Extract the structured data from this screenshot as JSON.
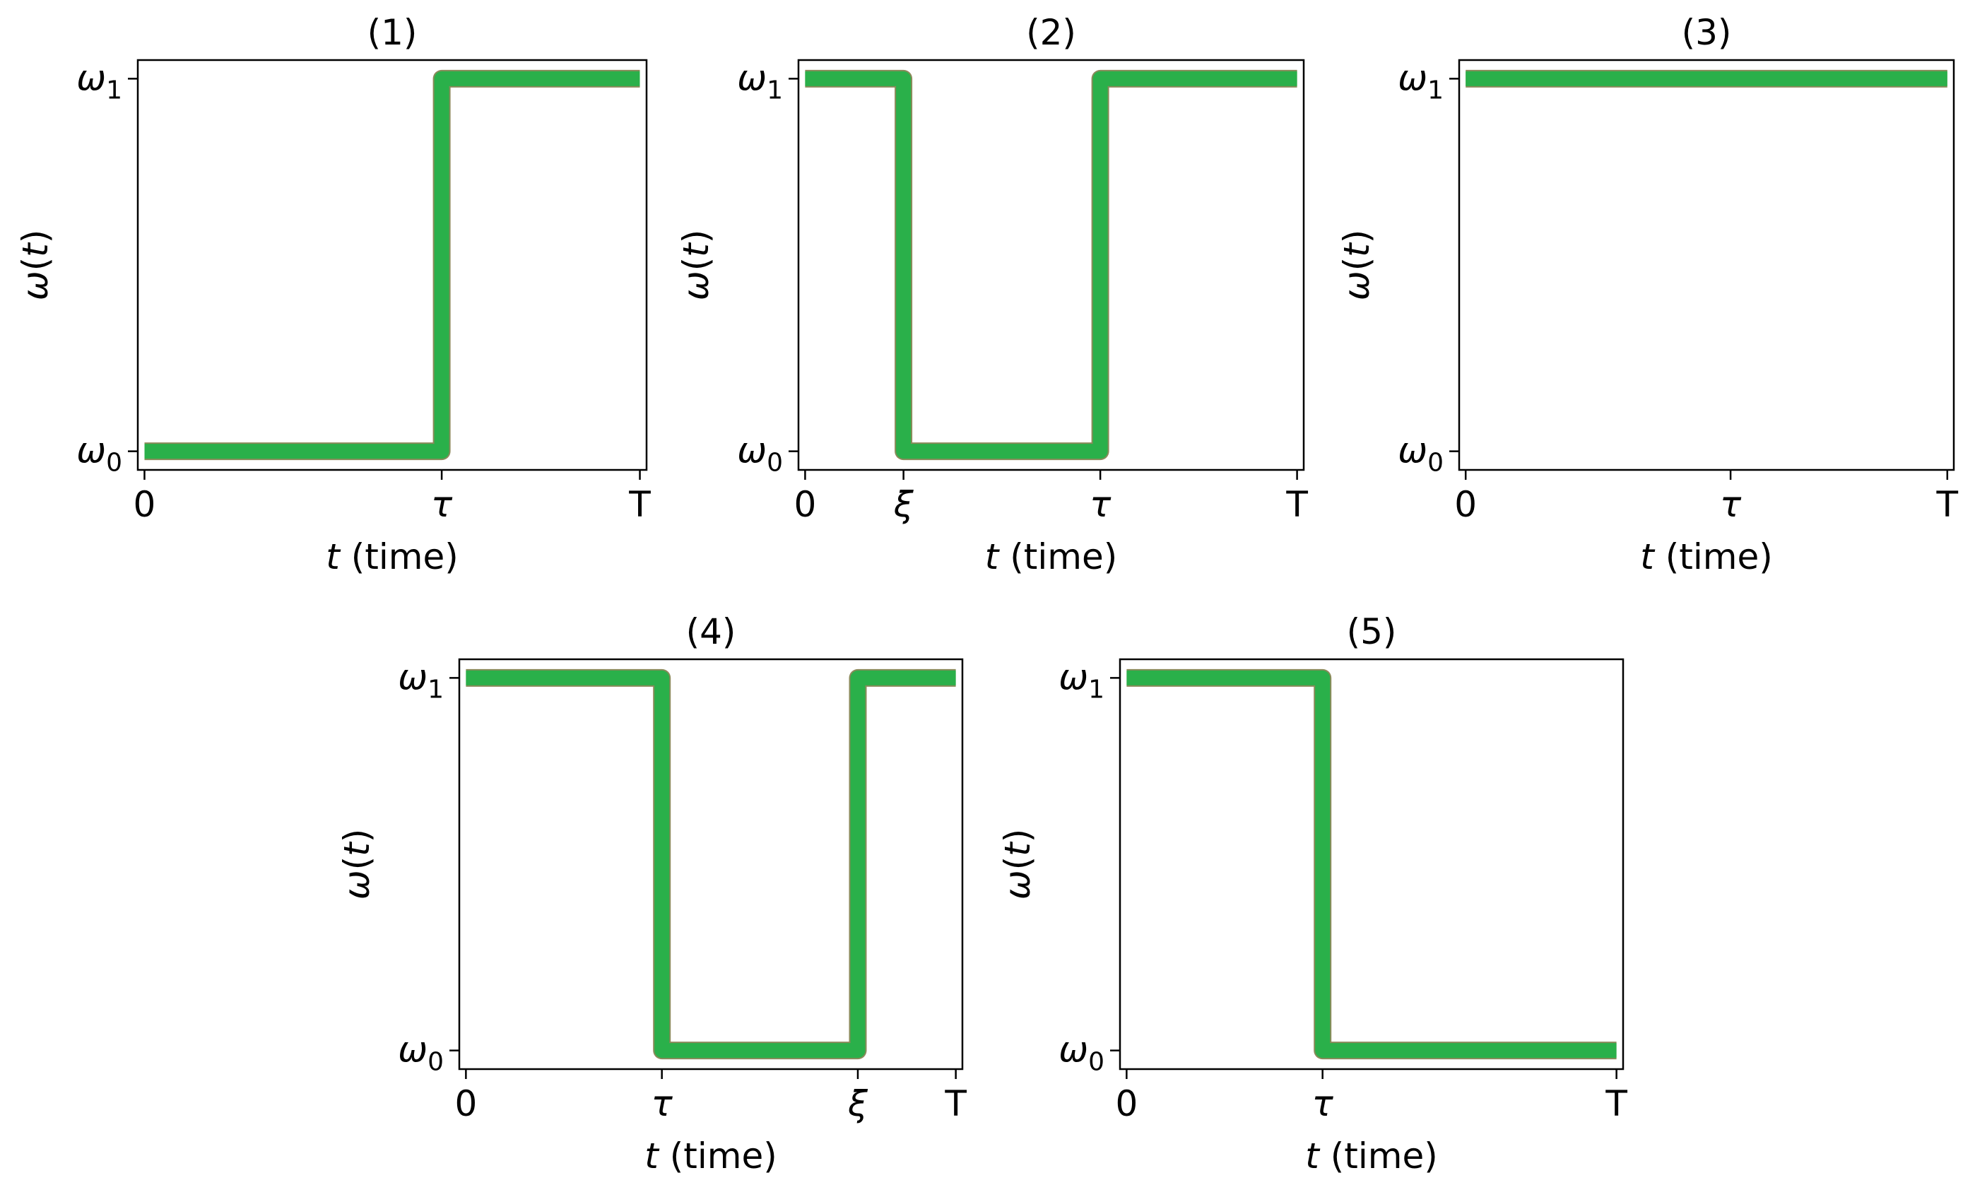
{
  "chart_data": [
    {
      "type": "line",
      "title": "(1)",
      "xlabel": {
        "var": "t",
        "rest": " (time)"
      },
      "ylabel": {
        "sym": "ω",
        "open": "(",
        "var": "t",
        "close": ")"
      },
      "xticks": [
        {
          "value": 0,
          "label": "0",
          "italic": false
        },
        {
          "value": 0.6,
          "label": "τ",
          "italic": true
        },
        {
          "value": 1,
          "label": "T",
          "italic": false
        }
      ],
      "yticks": [
        {
          "value": 0,
          "base": "ω",
          "sub": "0"
        },
        {
          "value": 1,
          "base": "ω",
          "sub": "1"
        }
      ],
      "xlim": [
        -0.0135,
        1.0135
      ],
      "ylim": [
        -0.05,
        1.05
      ],
      "series": [
        {
          "color": "#2ab04a",
          "x": [
            0,
            0.6,
            0.6,
            1
          ],
          "y": [
            0,
            0,
            1,
            1
          ]
        }
      ]
    },
    {
      "type": "line",
      "title": "(2)",
      "xlabel": {
        "var": "t",
        "rest": " (time)"
      },
      "ylabel": {
        "sym": "ω",
        "open": "(",
        "var": "t",
        "close": ")"
      },
      "xticks": [
        {
          "value": 0,
          "label": "0",
          "italic": false
        },
        {
          "value": 0.2,
          "label": "ξ",
          "italic": true
        },
        {
          "value": 0.6,
          "label": "τ",
          "italic": true
        },
        {
          "value": 1,
          "label": "T",
          "italic": false
        }
      ],
      "yticks": [
        {
          "value": 0,
          "base": "ω",
          "sub": "0"
        },
        {
          "value": 1,
          "base": "ω",
          "sub": "1"
        }
      ],
      "xlim": [
        -0.0135,
        1.0135
      ],
      "ylim": [
        -0.05,
        1.05
      ],
      "series": [
        {
          "color": "#2ab04a",
          "x": [
            0,
            0.2,
            0.2,
            0.6,
            0.6,
            1
          ],
          "y": [
            1,
            1,
            0,
            0,
            1,
            1
          ]
        }
      ]
    },
    {
      "type": "line",
      "title": "(3)",
      "xlabel": {
        "var": "t",
        "rest": " (time)"
      },
      "ylabel": {
        "sym": "ω",
        "open": "(",
        "var": "t",
        "close": ")"
      },
      "xticks": [
        {
          "value": 0,
          "label": "0",
          "italic": false
        },
        {
          "value": 0.55,
          "label": "τ",
          "italic": true
        },
        {
          "value": 1,
          "label": "T",
          "italic": false
        }
      ],
      "yticks": [
        {
          "value": 0,
          "base": "ω",
          "sub": "0"
        },
        {
          "value": 1,
          "base": "ω",
          "sub": "1"
        }
      ],
      "xlim": [
        -0.0135,
        1.0135
      ],
      "ylim": [
        -0.05,
        1.05
      ],
      "series": [
        {
          "color": "#2ab04a",
          "x": [
            0,
            1
          ],
          "y": [
            1,
            1
          ]
        }
      ]
    },
    {
      "type": "line",
      "title": "(4)",
      "xlabel": {
        "var": "t",
        "rest": " (time)"
      },
      "ylabel": {
        "sym": "ω",
        "open": "(",
        "var": "t",
        "close": ")"
      },
      "xticks": [
        {
          "value": 0,
          "label": "0",
          "italic": false
        },
        {
          "value": 0.4,
          "label": "τ",
          "italic": true
        },
        {
          "value": 0.8,
          "label": "ξ",
          "italic": true
        },
        {
          "value": 1,
          "label": "T",
          "italic": false
        }
      ],
      "yticks": [
        {
          "value": 0,
          "base": "ω",
          "sub": "0"
        },
        {
          "value": 1,
          "base": "ω",
          "sub": "1"
        }
      ],
      "xlim": [
        -0.0135,
        1.0135
      ],
      "ylim": [
        -0.05,
        1.05
      ],
      "series": [
        {
          "color": "#2ab04a",
          "x": [
            0,
            0.4,
            0.4,
            0.8,
            0.8,
            1
          ],
          "y": [
            1,
            1,
            0,
            0,
            1,
            1
          ]
        }
      ]
    },
    {
      "type": "line",
      "title": "(5)",
      "xlabel": {
        "var": "t",
        "rest": " (time)"
      },
      "ylabel": {
        "sym": "ω",
        "open": "(",
        "var": "t",
        "close": ")"
      },
      "xticks": [
        {
          "value": 0,
          "label": "0",
          "italic": false
        },
        {
          "value": 0.4,
          "label": "τ",
          "italic": true
        },
        {
          "value": 1,
          "label": "T",
          "italic": false
        }
      ],
      "yticks": [
        {
          "value": 0,
          "base": "ω",
          "sub": "0"
        },
        {
          "value": 1,
          "base": "ω",
          "sub": "1"
        }
      ],
      "xlim": [
        -0.0135,
        1.0135
      ],
      "ylim": [
        -0.05,
        1.05
      ],
      "series": [
        {
          "color": "#2ab04a",
          "x": [
            0,
            0.4,
            0.4,
            1
          ],
          "y": [
            1,
            1,
            0,
            0
          ]
        }
      ]
    }
  ]
}
